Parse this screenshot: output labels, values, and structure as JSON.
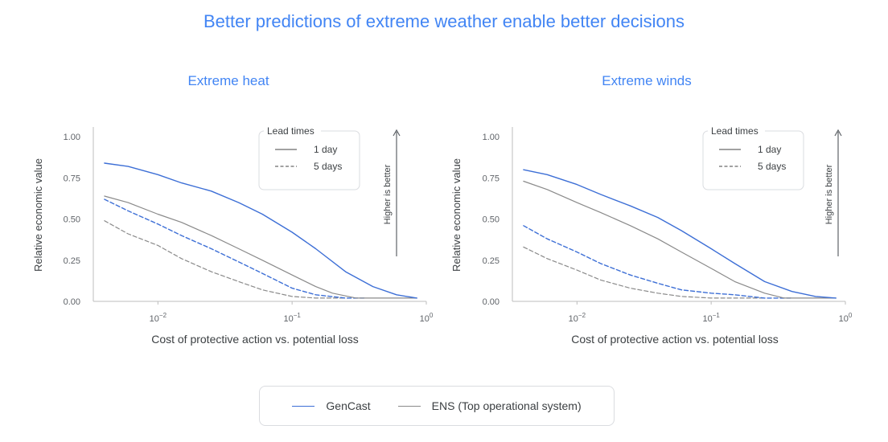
{
  "page": {
    "title": "Better predictions of extreme weather enable better decisions"
  },
  "colors": {
    "gencast": "#3d6fd6",
    "ens": "#8a8a8a",
    "title": "#4285f4",
    "axis": "#bdbdbd"
  },
  "legend": {
    "entries": [
      {
        "label": "GenCast",
        "color": "#3d6fd6"
      },
      {
        "label": "ENS (Top operational system)",
        "color": "#8a8a8a"
      }
    ]
  },
  "chart_data": [
    {
      "type": "line",
      "title": "Extreme heat",
      "xlabel": "Cost of protective action vs. potential loss",
      "ylabel": "Relative economic value",
      "xscale": "log",
      "xlim": [
        0.0033,
        1.0
      ],
      "ylim": [
        0,
        1.05
      ],
      "xticks": [
        {
          "value": 0.01,
          "base": "10",
          "exp": "−2"
        },
        {
          "value": 0.1,
          "base": "10",
          "exp": "−1"
        },
        {
          "value": 1,
          "base": "10",
          "exp": "0"
        }
      ],
      "yticks": [
        "0.00",
        "0.25",
        "0.50",
        "0.75",
        "1.00"
      ],
      "annotation": "Higher is better",
      "legend_title": "Lead times",
      "lead_times": [
        {
          "label": "1 day",
          "style": "solid"
        },
        {
          "label": "5 days",
          "style": "dashed"
        }
      ],
      "series": [
        {
          "name": "GenCast 1 day",
          "model": "gencast",
          "lead": "1 day",
          "x": [
            0.004,
            0.006,
            0.01,
            0.015,
            0.025,
            0.04,
            0.06,
            0.1,
            0.15,
            0.25,
            0.4,
            0.6,
            0.85
          ],
          "y": [
            0.84,
            0.82,
            0.77,
            0.72,
            0.67,
            0.6,
            0.53,
            0.42,
            0.32,
            0.18,
            0.09,
            0.04,
            0.02
          ]
        },
        {
          "name": "ENS 1 day",
          "model": "ens",
          "lead": "1 day",
          "x": [
            0.004,
            0.006,
            0.01,
            0.015,
            0.025,
            0.04,
            0.06,
            0.1,
            0.15,
            0.2,
            0.3,
            0.4,
            0.85
          ],
          "y": [
            0.64,
            0.6,
            0.53,
            0.48,
            0.4,
            0.32,
            0.25,
            0.16,
            0.09,
            0.05,
            0.02,
            0.02,
            0.02
          ]
        },
        {
          "name": "GenCast 5 days",
          "model": "gencast",
          "lead": "5 days",
          "x": [
            0.004,
            0.006,
            0.01,
            0.015,
            0.025,
            0.04,
            0.06,
            0.1,
            0.15,
            0.25,
            0.35
          ],
          "y": [
            0.62,
            0.55,
            0.47,
            0.4,
            0.32,
            0.24,
            0.17,
            0.08,
            0.04,
            0.02,
            0.02
          ]
        },
        {
          "name": "ENS 5 days",
          "model": "ens",
          "lead": "5 days",
          "x": [
            0.004,
            0.006,
            0.01,
            0.015,
            0.025,
            0.04,
            0.06,
            0.1,
            0.15,
            0.25
          ],
          "y": [
            0.49,
            0.41,
            0.34,
            0.26,
            0.18,
            0.12,
            0.07,
            0.03,
            0.02,
            0.02
          ]
        }
      ]
    },
    {
      "type": "line",
      "title": "Extreme winds",
      "xlabel": "Cost of protective action vs. potential loss",
      "ylabel": "Relative economic value",
      "xscale": "log",
      "xlim": [
        0.0033,
        1.0
      ],
      "ylim": [
        0,
        1.05
      ],
      "xticks": [
        {
          "value": 0.01,
          "base": "10",
          "exp": "−2"
        },
        {
          "value": 0.1,
          "base": "10",
          "exp": "−1"
        },
        {
          "value": 1,
          "base": "10",
          "exp": "0"
        }
      ],
      "yticks": [
        "0.00",
        "0.25",
        "0.50",
        "0.75",
        "1.00"
      ],
      "annotation": "Higher is better",
      "legend_title": "Lead times",
      "lead_times": [
        {
          "label": "1 day",
          "style": "solid"
        },
        {
          "label": "5 days",
          "style": "dashed"
        }
      ],
      "series": [
        {
          "name": "GenCast 1 day",
          "model": "gencast",
          "lead": "1 day",
          "x": [
            0.004,
            0.006,
            0.01,
            0.015,
            0.025,
            0.04,
            0.06,
            0.1,
            0.15,
            0.25,
            0.4,
            0.6,
            0.85
          ],
          "y": [
            0.8,
            0.77,
            0.71,
            0.65,
            0.58,
            0.51,
            0.43,
            0.32,
            0.23,
            0.12,
            0.06,
            0.03,
            0.02
          ]
        },
        {
          "name": "ENS 1 day",
          "model": "ens",
          "lead": "1 day",
          "x": [
            0.004,
            0.006,
            0.01,
            0.015,
            0.025,
            0.04,
            0.06,
            0.1,
            0.15,
            0.25,
            0.35,
            0.45,
            0.85
          ],
          "y": [
            0.73,
            0.68,
            0.6,
            0.54,
            0.46,
            0.38,
            0.3,
            0.2,
            0.12,
            0.05,
            0.02,
            0.02,
            0.02
          ]
        },
        {
          "name": "GenCast 5 days",
          "model": "gencast",
          "lead": "5 days",
          "x": [
            0.004,
            0.006,
            0.01,
            0.015,
            0.025,
            0.04,
            0.06,
            0.1,
            0.15,
            0.25,
            0.4
          ],
          "y": [
            0.46,
            0.38,
            0.3,
            0.23,
            0.16,
            0.11,
            0.07,
            0.05,
            0.04,
            0.02,
            0.02
          ]
        },
        {
          "name": "ENS 5 days",
          "model": "ens",
          "lead": "5 days",
          "x": [
            0.004,
            0.006,
            0.01,
            0.015,
            0.025,
            0.04,
            0.06,
            0.1,
            0.15,
            0.25
          ],
          "y": [
            0.33,
            0.26,
            0.19,
            0.13,
            0.08,
            0.05,
            0.03,
            0.02,
            0.02,
            0.02
          ]
        }
      ]
    }
  ]
}
